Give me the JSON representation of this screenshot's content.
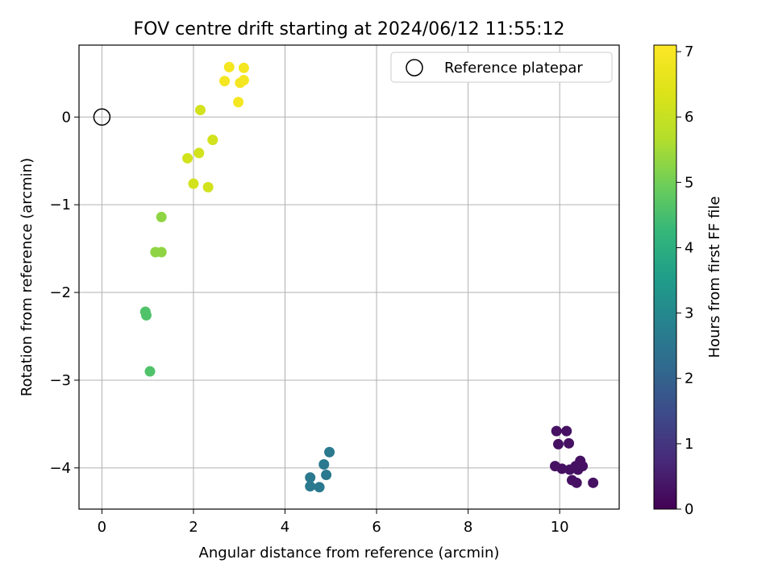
{
  "chart_data": {
    "type": "scatter",
    "title": "FOV centre drift starting at 2024/06/12 11:55:12",
    "xlabel": "Angular distance from reference (arcmin)",
    "ylabel": "Rotation from reference (arcmin)",
    "xlim": [
      -0.5,
      11.3
    ],
    "ylim": [
      -4.47,
      0.82
    ],
    "xticks": [
      "0",
      "2",
      "4",
      "6",
      "8",
      "10"
    ],
    "xtick_values": [
      0,
      2,
      4,
      6,
      8,
      10
    ],
    "yticks": [
      "0",
      "−1",
      "−2",
      "−3",
      "−4"
    ],
    "ytick_values": [
      0,
      -1,
      -2,
      -3,
      -4
    ],
    "grid": true,
    "legend": {
      "position": "top-right",
      "entries": [
        "Reference platepar"
      ]
    },
    "reference_point": {
      "x": 0,
      "y": 0
    },
    "colorbar": {
      "label": "Hours from first FF file",
      "min": 0,
      "max": 7.1,
      "ticks": [
        "0",
        "1",
        "2",
        "3",
        "4",
        "5",
        "6",
        "7"
      ],
      "tick_values": [
        0,
        1,
        2,
        3,
        4,
        5,
        6,
        7
      ],
      "colormap": "viridis"
    },
    "points": [
      {
        "x": 9.93,
        "y": -3.58,
        "hours": 0.3
      },
      {
        "x": 10.15,
        "y": -3.58,
        "hours": 0.3
      },
      {
        "x": 9.97,
        "y": -3.73,
        "hours": 0.3
      },
      {
        "x": 10.2,
        "y": -3.72,
        "hours": 0.3
      },
      {
        "x": 9.9,
        "y": -3.98,
        "hours": 0.3
      },
      {
        "x": 10.05,
        "y": -4.01,
        "hours": 0.3
      },
      {
        "x": 10.22,
        "y": -4.02,
        "hours": 0.3
      },
      {
        "x": 10.35,
        "y": -3.98,
        "hours": 0.3
      },
      {
        "x": 10.45,
        "y": -3.92,
        "hours": 0.3
      },
      {
        "x": 10.5,
        "y": -3.98,
        "hours": 0.3
      },
      {
        "x": 10.4,
        "y": -4.02,
        "hours": 0.3
      },
      {
        "x": 10.27,
        "y": -4.14,
        "hours": 0.3
      },
      {
        "x": 10.37,
        "y": -4.17,
        "hours": 0.3
      },
      {
        "x": 10.73,
        "y": -4.17,
        "hours": 0.3
      },
      {
        "x": 4.97,
        "y": -3.82,
        "hours": 2.6
      },
      {
        "x": 4.85,
        "y": -3.96,
        "hours": 2.6
      },
      {
        "x": 4.9,
        "y": -4.08,
        "hours": 2.6
      },
      {
        "x": 4.55,
        "y": -4.11,
        "hours": 2.6
      },
      {
        "x": 4.55,
        "y": -4.21,
        "hours": 2.6
      },
      {
        "x": 4.75,
        "y": -4.22,
        "hours": 2.6
      },
      {
        "x": 1.05,
        "y": -2.9,
        "hours": 4.6
      },
      {
        "x": 0.95,
        "y": -2.22,
        "hours": 4.6
      },
      {
        "x": 0.97,
        "y": -2.26,
        "hours": 4.6
      },
      {
        "x": 1.3,
        "y": -1.14,
        "hours": 5.3
      },
      {
        "x": 1.17,
        "y": -1.54,
        "hours": 5.3
      },
      {
        "x": 1.3,
        "y": -1.54,
        "hours": 5.3
      },
      {
        "x": 2.15,
        "y": 0.08,
        "hours": 6.2
      },
      {
        "x": 2.42,
        "y": -0.26,
        "hours": 6.2
      },
      {
        "x": 2.12,
        "y": -0.41,
        "hours": 6.2
      },
      {
        "x": 1.87,
        "y": -0.47,
        "hours": 6.2
      },
      {
        "x": 2.0,
        "y": -0.76,
        "hours": 6.2
      },
      {
        "x": 2.32,
        "y": -0.8,
        "hours": 6.2
      },
      {
        "x": 2.78,
        "y": 0.57,
        "hours": 6.9
      },
      {
        "x": 3.1,
        "y": 0.56,
        "hours": 6.9
      },
      {
        "x": 2.68,
        "y": 0.41,
        "hours": 6.9
      },
      {
        "x": 3.02,
        "y": 0.39,
        "hours": 6.9
      },
      {
        "x": 3.1,
        "y": 0.42,
        "hours": 6.9
      },
      {
        "x": 2.98,
        "y": 0.17,
        "hours": 6.9
      }
    ]
  }
}
